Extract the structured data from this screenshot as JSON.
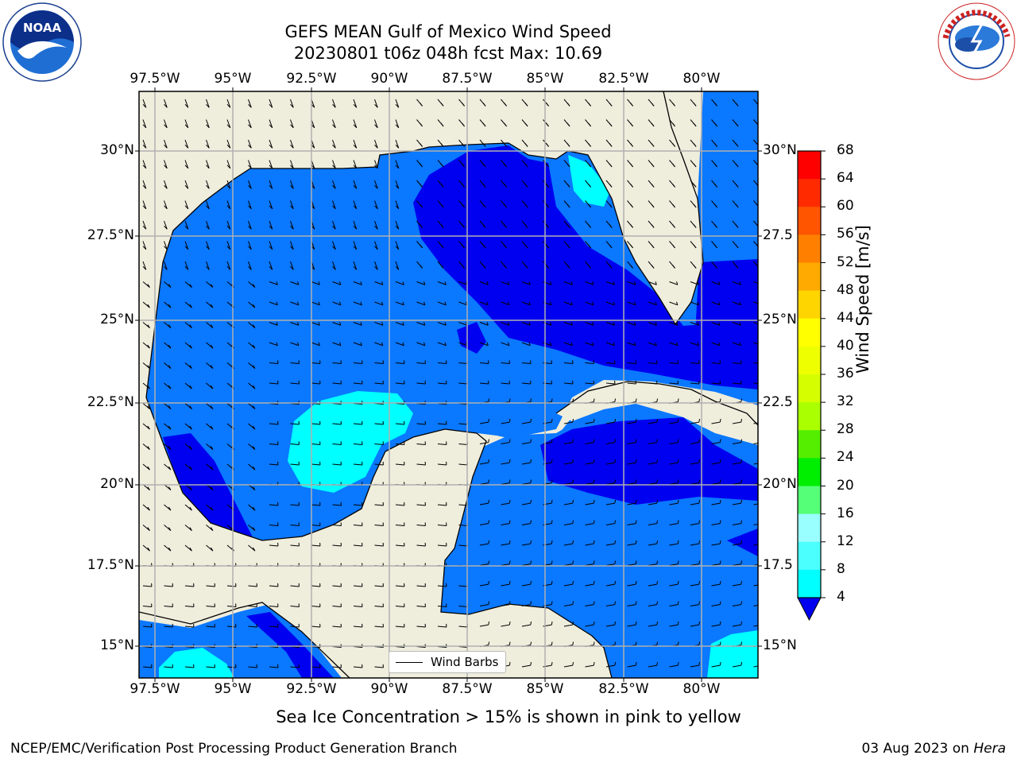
{
  "title": {
    "line1": "GEFS MEAN Gulf of Mexico Wind Speed",
    "line2": "20230801 t06z 048h fcst   Max: 10.69"
  },
  "logos": {
    "left": {
      "name": "noaa-logo",
      "text": "NOAA",
      "ring_text": "NATIONAL OCEANIC AND ATMOSPHERIC ADMINISTRATION · U.S. DEPARTMENT OF COMMERCE"
    },
    "right": {
      "name": "nws-logo",
      "ring_text": "NATIONAL WEATHER SERVICE"
    }
  },
  "map": {
    "lon_labels": [
      "97.5°W",
      "95°W",
      "92.5°W",
      "90°W",
      "87.5°W",
      "85°W",
      "82.5°W",
      "80°W"
    ],
    "lat_labels_left": [
      "30°N",
      "27.5°N",
      "25°N",
      "22.5°N",
      "20°N",
      "17.5°N",
      "15°N"
    ],
    "lat_labels_right": [
      "30°N",
      "27.5",
      "25°N",
      "22.5",
      "20°N",
      "17.5",
      "15°N"
    ],
    "colors": {
      "land": "#efeddc",
      "ws_4_8": "#0a78ff",
      "ws_below_4": "#0000f0",
      "ws_8_12": "#00ffff",
      "ws_12_16": "#4cffff"
    },
    "legend_label": "Wind Barbs"
  },
  "colorbar": {
    "label": "Wind Speed [m/s]",
    "ticks": [
      "68",
      "64",
      "60",
      "56",
      "52",
      "48",
      "44",
      "40",
      "36",
      "32",
      "28",
      "24",
      "20",
      "16",
      "12",
      "8",
      "4"
    ],
    "colors": [
      "#ff0000",
      "#ff2a00",
      "#ff5500",
      "#ff8000",
      "#ffaa00",
      "#ffd500",
      "#ffff00",
      "#eeff00",
      "#d5ff00",
      "#aaff00",
      "#55ee00",
      "#00ee00",
      "#55ff77",
      "#9affff",
      "#4cffff",
      "#00ffff",
      "#0a78ff"
    ],
    "extend_color": "#0000f0"
  },
  "footer": {
    "sea_ice": "Sea Ice Concentration > 15% is shown in pink to yellow",
    "credit": "NCEP/EMC/Verification Post Processing Product Generation Branch",
    "date": "03 Aug 2023 on ",
    "host": "Hera"
  }
}
